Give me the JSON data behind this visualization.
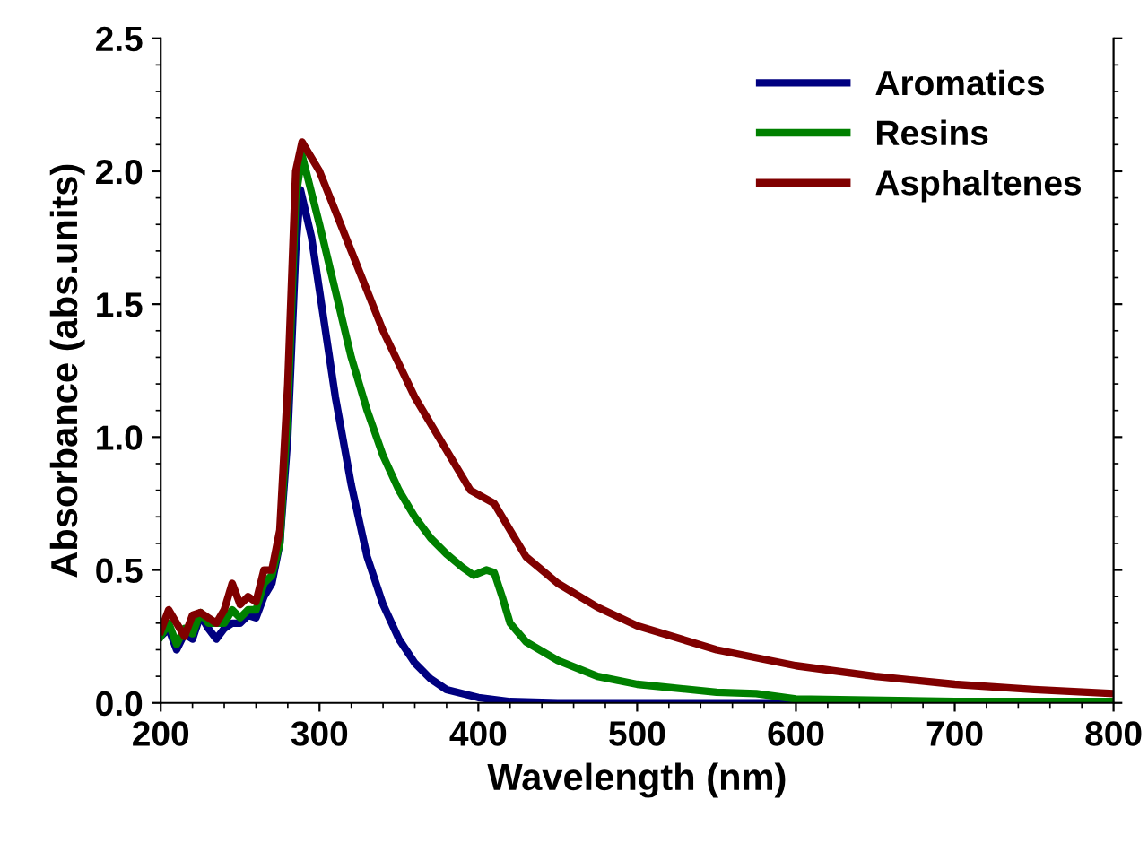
{
  "chart_data": {
    "type": "line",
    "xlabel": "Wavelength (nm)",
    "ylabel": "Absorbance (abs.units)",
    "xlim": [
      200,
      800
    ],
    "xticks": [
      200,
      300,
      400,
      500,
      600,
      700,
      800
    ],
    "ylim": [
      0,
      2.5
    ],
    "yticks": [
      {
        "value": 0,
        "label": "0.0"
      },
      0.5,
      {
        "value": 1,
        "label": "1.0"
      },
      1.5,
      {
        "value": 2,
        "label": "2.0"
      },
      2.5
    ],
    "grid": false,
    "legend": "top right",
    "line_style": "solid",
    "marker": "none",
    "series": [
      {
        "name": "Aromatics",
        "color": "#000080",
        "x": [
          200,
          205,
          210,
          215,
          220,
          225,
          230,
          235,
          240,
          245,
          250,
          255,
          260,
          265,
          270,
          275,
          280,
          285,
          288,
          295,
          300,
          310,
          320,
          330,
          340,
          350,
          360,
          370,
          380,
          400,
          420,
          450,
          500,
          800
        ],
        "values": [
          0.25,
          0.28,
          0.2,
          0.26,
          0.24,
          0.33,
          0.28,
          0.24,
          0.28,
          0.3,
          0.3,
          0.33,
          0.32,
          0.4,
          0.45,
          0.6,
          1.0,
          1.7,
          1.93,
          1.75,
          1.55,
          1.15,
          0.82,
          0.55,
          0.37,
          0.24,
          0.15,
          0.09,
          0.05,
          0.02,
          0.005,
          0.0,
          0.0,
          0.0
        ]
      },
      {
        "name": "Resins",
        "color": "#008000",
        "x": [
          200,
          205,
          210,
          215,
          220,
          225,
          230,
          240,
          245,
          250,
          255,
          260,
          265,
          270,
          275,
          280,
          285,
          289,
          300,
          310,
          320,
          330,
          340,
          350,
          360,
          370,
          380,
          390,
          397,
          405,
          410,
          415,
          420,
          430,
          450,
          475,
          500,
          550,
          575,
          600,
          700,
          800
        ],
        "values": [
          0.25,
          0.3,
          0.22,
          0.28,
          0.26,
          0.34,
          0.3,
          0.3,
          0.35,
          0.32,
          0.35,
          0.35,
          0.45,
          0.48,
          0.6,
          1.1,
          1.9,
          2.06,
          1.8,
          1.55,
          1.3,
          1.1,
          0.93,
          0.8,
          0.7,
          0.62,
          0.56,
          0.51,
          0.48,
          0.5,
          0.49,
          0.4,
          0.3,
          0.23,
          0.16,
          0.1,
          0.07,
          0.04,
          0.035,
          0.015,
          0.005,
          0.005
        ]
      },
      {
        "name": "Asphaltenes",
        "color": "#800000",
        "x": [
          200,
          205,
          210,
          215,
          220,
          225,
          230,
          235,
          240,
          245,
          250,
          255,
          260,
          265,
          270,
          275,
          280,
          285,
          289,
          300,
          310,
          320,
          340,
          360,
          380,
          395,
          410,
          420,
          430,
          450,
          475,
          500,
          550,
          600,
          650,
          700,
          750,
          800
        ],
        "values": [
          0.27,
          0.35,
          0.3,
          0.25,
          0.33,
          0.34,
          0.32,
          0.3,
          0.35,
          0.45,
          0.37,
          0.4,
          0.38,
          0.5,
          0.5,
          0.65,
          1.2,
          2.0,
          2.11,
          2.0,
          1.85,
          1.7,
          1.4,
          1.15,
          0.95,
          0.8,
          0.75,
          0.65,
          0.55,
          0.45,
          0.36,
          0.29,
          0.2,
          0.14,
          0.1,
          0.07,
          0.05,
          0.035
        ]
      }
    ]
  }
}
